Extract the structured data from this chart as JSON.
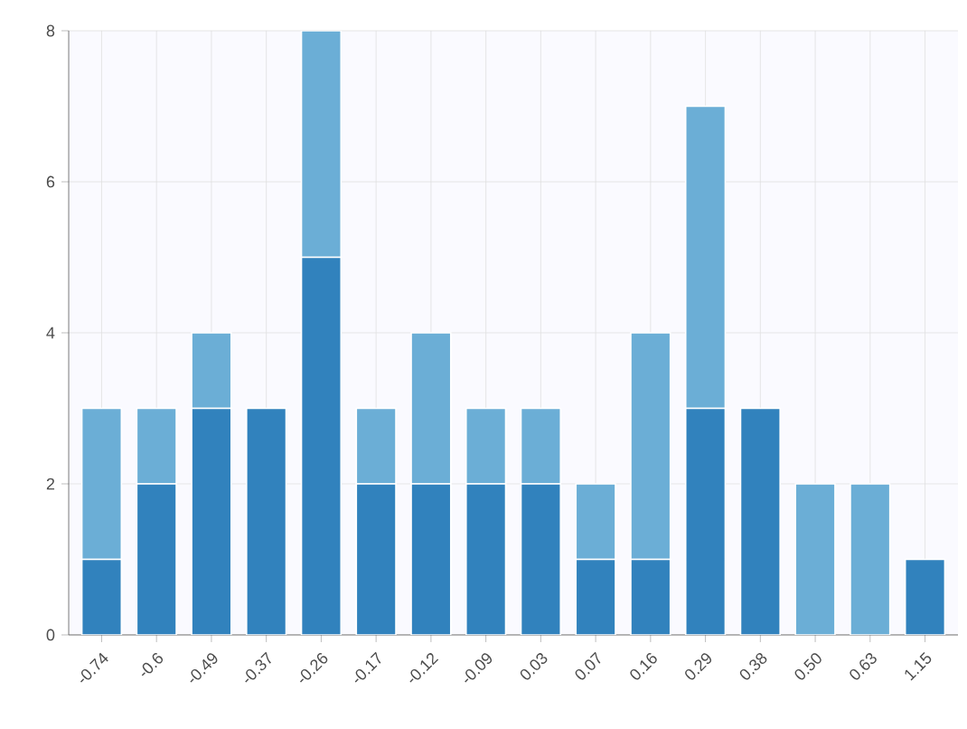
{
  "chart_data": {
    "type": "bar",
    "stacked": true,
    "grid": true,
    "categories": [
      "-0.74",
      "-0.6",
      "-0.49",
      "-0.37",
      "-0.26",
      "-0.17",
      "-0.12",
      "-0.09",
      "0.03",
      "0.07",
      "0.16",
      "0.29",
      "0.38",
      "0.50",
      "0.63",
      "1.15"
    ],
    "series": [
      {
        "color": "#3182bd",
        "values": [
          1,
          2,
          3,
          3,
          5,
          2,
          2,
          2,
          2,
          1,
          1,
          3,
          3,
          0,
          0,
          1
        ]
      },
      {
        "color": "#6baed6",
        "values": [
          2,
          1,
          1,
          0,
          3,
          1,
          2,
          1,
          1,
          1,
          3,
          4,
          0,
          2,
          2,
          0
        ]
      }
    ],
    "ylim": [
      0,
      8
    ],
    "yticks": [
      0,
      2,
      4,
      6,
      8
    ]
  }
}
